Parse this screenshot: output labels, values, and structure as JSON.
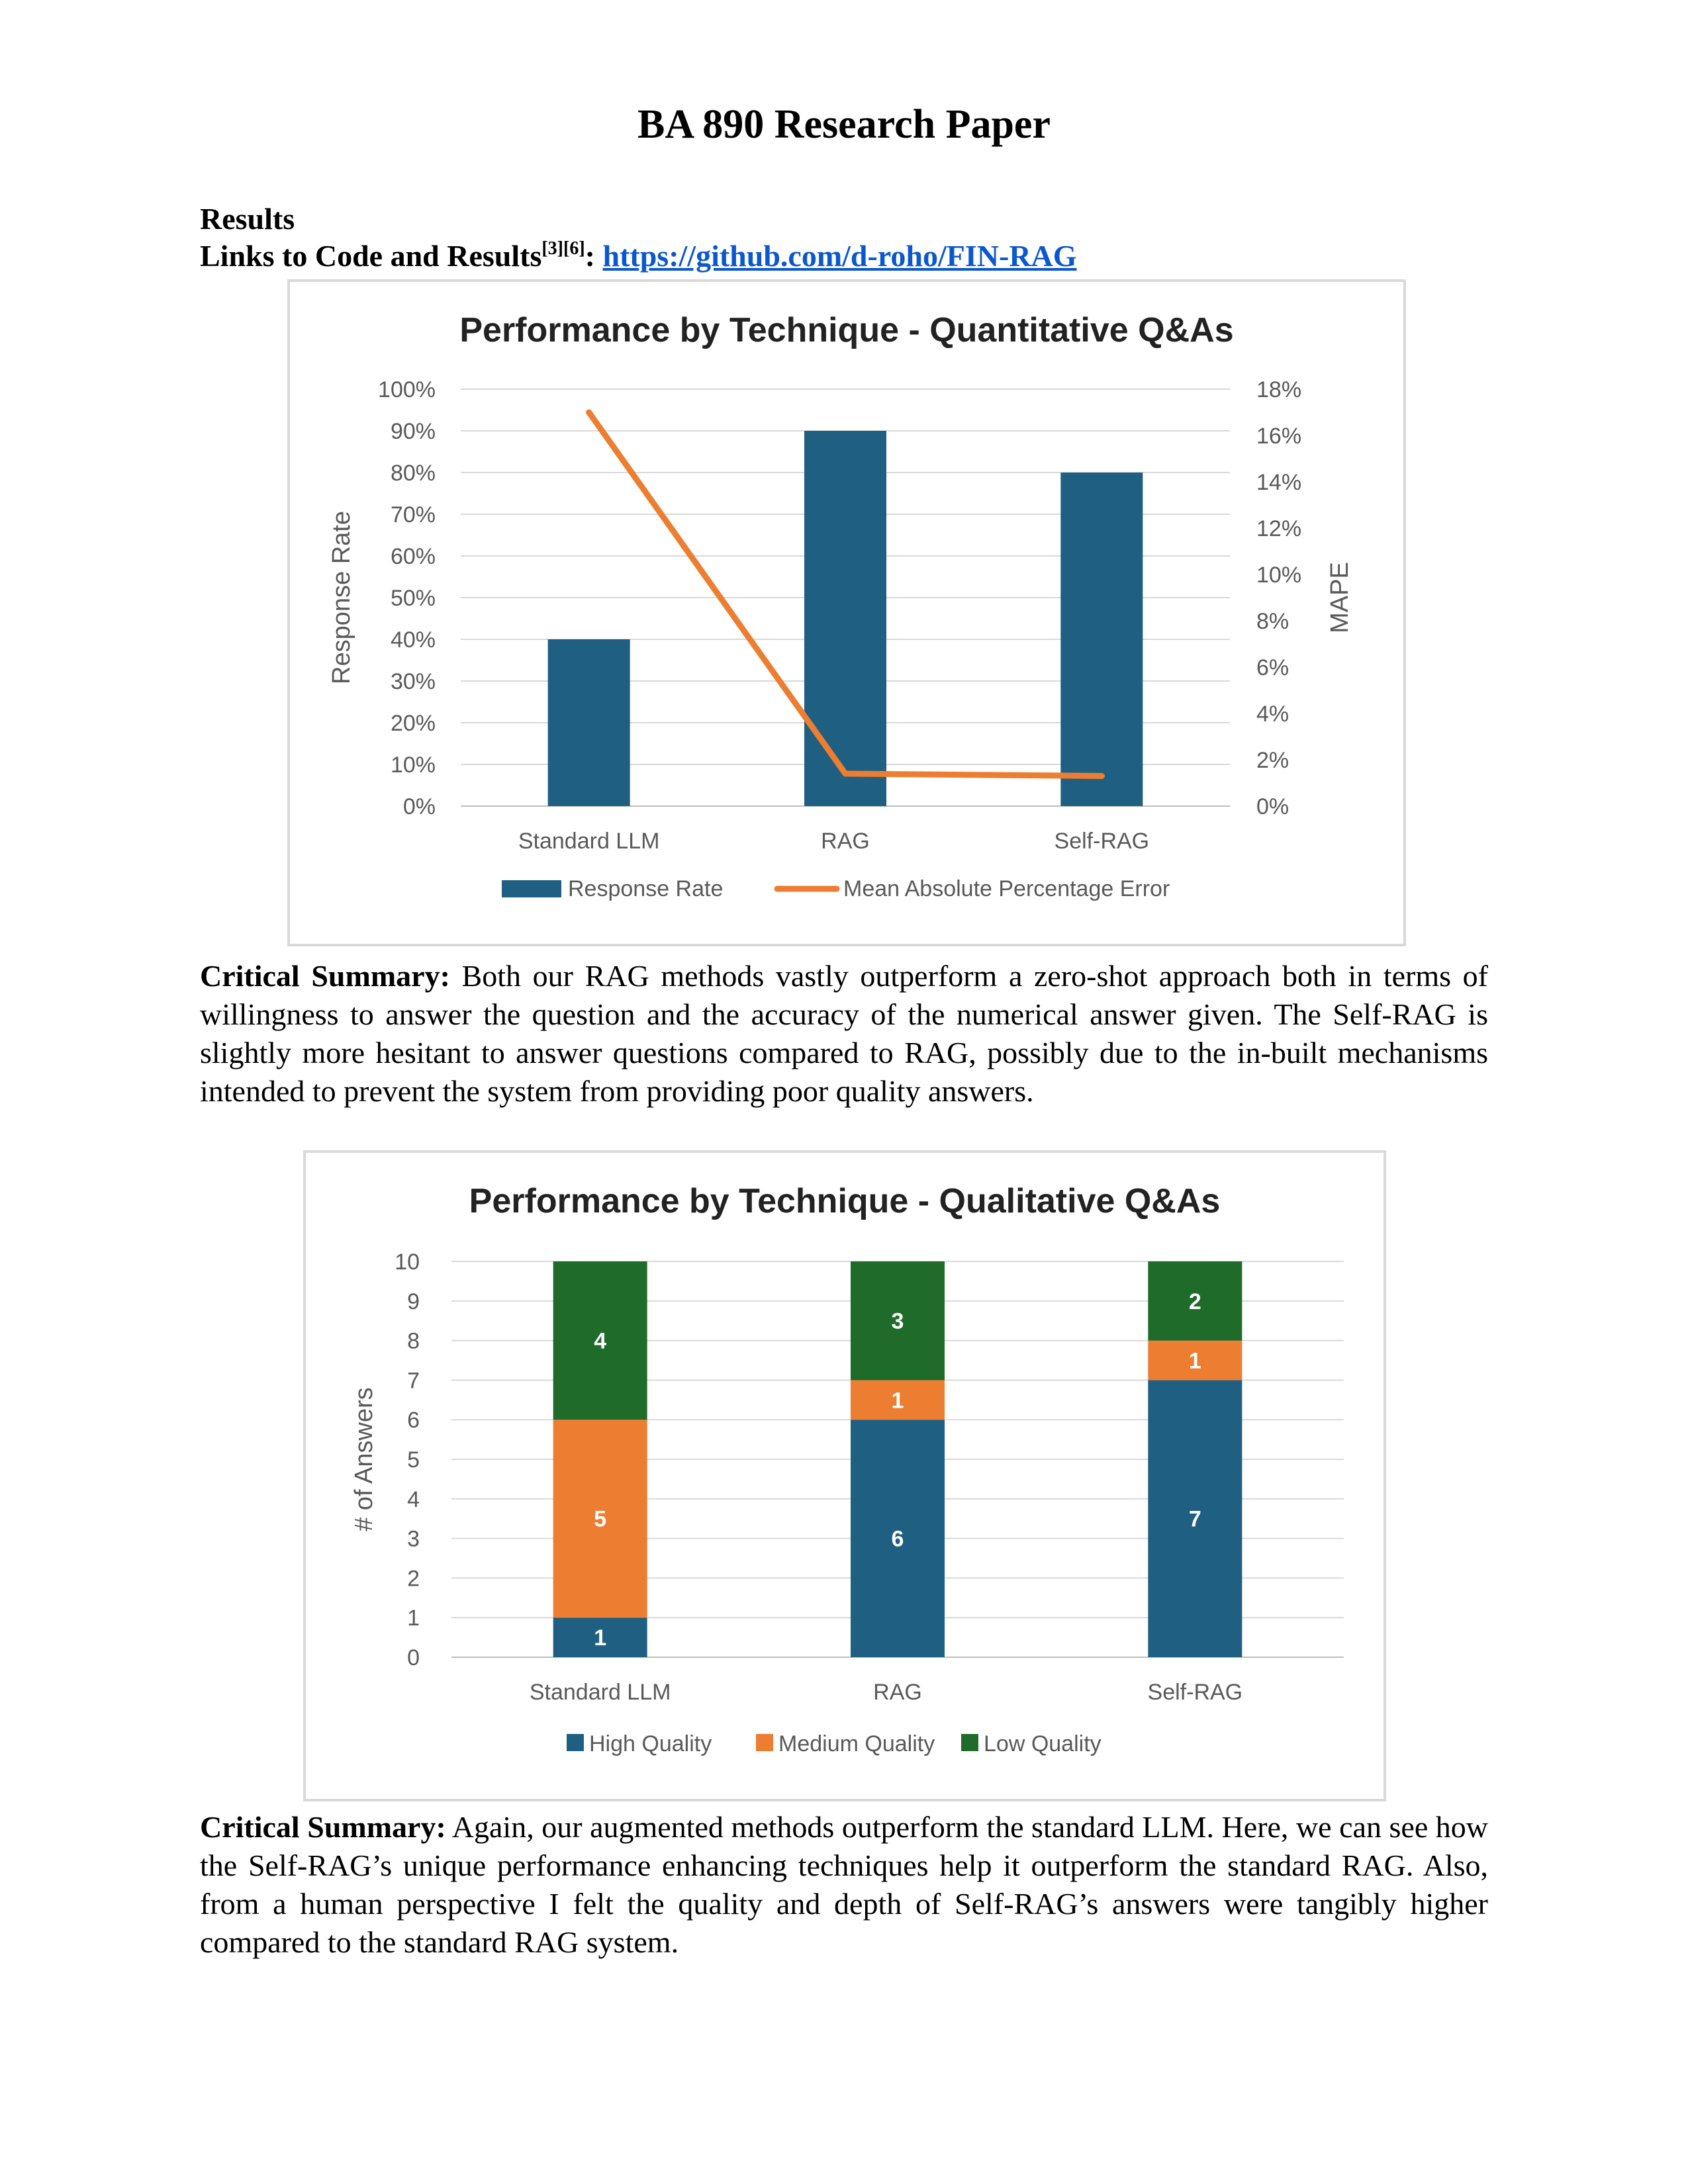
{
  "paper": {
    "title": "BA 890 Research Paper",
    "section_heading": "Results",
    "links_label": "Links to Code and Results",
    "links_refs": "[3][6]",
    "links_colon": ":",
    "links_url": "https://github.com/d-roho/FIN-RAG",
    "summary_label": "Critical Summary:",
    "summary1_text": "Both our RAG methods vastly outperform a zero-shot approach both in terms of willingness to answer the question and the accuracy of the numerical answer given. The Self-RAG is slightly more hesitant to answer questions compared to RAG, possibly due to the in-built mechanisms intended to prevent the system from providing poor quality answers.",
    "summary2_text": "Again, our augmented methods outperform the standard LLM. Here, we can see how the Self-RAG’s unique performance enhancing techniques help it outperform the standard RAG. Also, from a human perspective I felt the quality and depth of Self-RAG’s answers were tangibly higher compared to the standard RAG system."
  },
  "chart_data": [
    {
      "type": "bar",
      "title": "Performance by Technique - Quantitative  Q&As",
      "categories": [
        "Standard LLM",
        "RAG",
        "Self-RAG"
      ],
      "series": [
        {
          "name": "Response Rate",
          "type": "bar",
          "axis": "left",
          "values": [
            40,
            90,
            80
          ],
          "color": "#1f5f82"
        },
        {
          "name": "Mean Absolute Percentage Error",
          "type": "line",
          "axis": "right",
          "values": [
            17,
            1.4,
            1.3
          ],
          "color": "#ed7d31"
        }
      ],
      "ylabel": "Response Rate",
      "y2label": "MAPE",
      "ylim": [
        0,
        100
      ],
      "y2lim": [
        0,
        18
      ],
      "yticks": [
        "0%",
        "10%",
        "20%",
        "30%",
        "40%",
        "50%",
        "60%",
        "70%",
        "80%",
        "90%",
        "100%"
      ],
      "y2ticks": [
        "0%",
        "2%",
        "4%",
        "6%",
        "8%",
        "10%",
        "12%",
        "14%",
        "16%",
        "18%"
      ],
      "grid": true,
      "legend": "bottom"
    },
    {
      "type": "bar",
      "stacked": true,
      "title": "Performance by Technique - Qualitative Q&As",
      "categories": [
        "Standard LLM",
        "RAG",
        "Self-RAG"
      ],
      "series": [
        {
          "name": "High Quality",
          "values": [
            1,
            6,
            7
          ],
          "color": "#1f5f82"
        },
        {
          "name": "Medium Quality",
          "values": [
            5,
            1,
            1
          ],
          "color": "#ed7d31"
        },
        {
          "name": "Low Quality",
          "values": [
            4,
            3,
            2
          ],
          "color": "#1e6b2a"
        }
      ],
      "ylabel": "# of Answers",
      "ylim": [
        0,
        10
      ],
      "yticks": [
        "0",
        "1",
        "2",
        "3",
        "4",
        "5",
        "6",
        "7",
        "8",
        "9",
        "10"
      ],
      "grid": true,
      "data_labels": true,
      "legend": "bottom"
    }
  ]
}
